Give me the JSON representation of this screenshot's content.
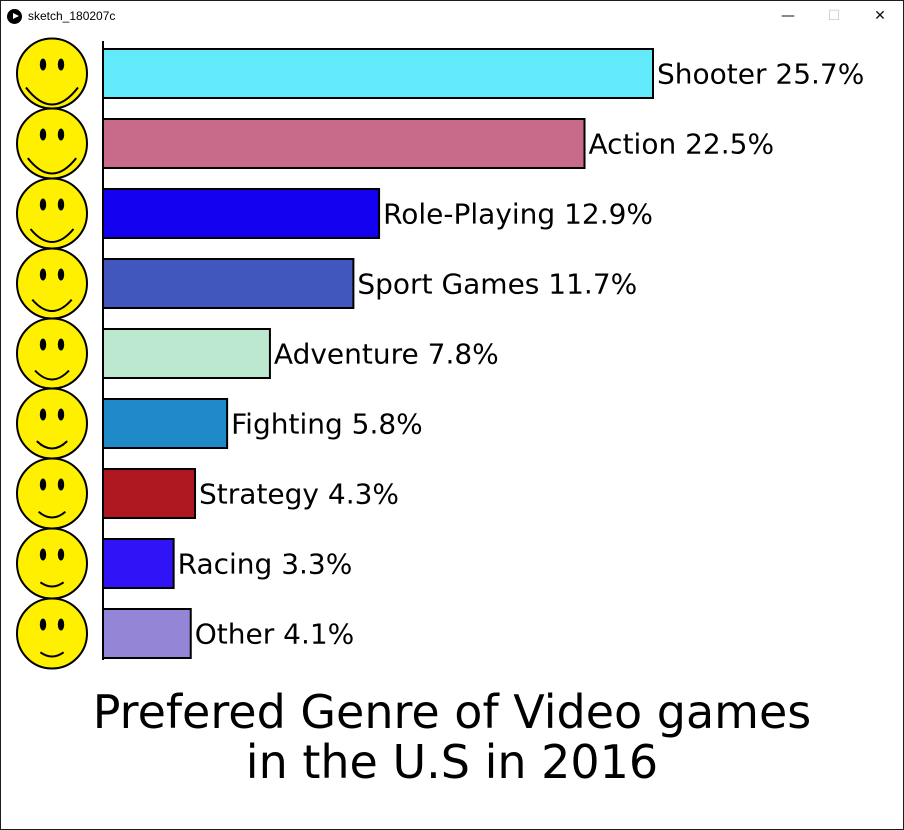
{
  "window": {
    "title": "sketch_180207c",
    "minimize_glyph": "—",
    "maximize_glyph": "☐",
    "close_glyph": "✕"
  },
  "chart_data": {
    "type": "bar",
    "orientation": "horizontal",
    "title_line1": "Prefered Genre of Video games",
    "title_line2": "in the U.S in 2016",
    "categories": [
      "Shooter",
      "Action",
      "Role-Playing",
      "Sport Games",
      "Adventure",
      "Fighting",
      "Strategy",
      "Racing",
      "Other"
    ],
    "values": [
      25.7,
      22.5,
      12.9,
      11.7,
      7.8,
      5.8,
      4.3,
      3.3,
      4.1
    ],
    "value_labels": [
      "Shooter 25.7%",
      "Action 22.5%",
      "Role-Playing 12.9%",
      "Sport Games 11.7%",
      "Adventure 7.8%",
      "Fighting 5.8%",
      "Strategy 4.3%",
      "Racing 3.3%",
      "Other 4.1%"
    ],
    "unit": "%",
    "colors": [
      "#62eafa",
      "#c86a8a",
      "#1200ee",
      "#4257bd",
      "#bde8d0",
      "#1e8ac7",
      "#ae1620",
      "#3013f6",
      "#9585d6"
    ],
    "row_icons": [
      "smiley-icon",
      "smiley-icon",
      "smiley-icon",
      "smiley-icon",
      "smiley-icon",
      "smiley-icon",
      "smiley-icon",
      "smiley-icon",
      "smiley-icon"
    ],
    "smile_levels": [
      1.0,
      0.9,
      0.75,
      0.65,
      0.5,
      0.4,
      0.3,
      0.2,
      0.2
    ],
    "icon_color": "#fff000",
    "grid": false,
    "legend": "none"
  }
}
